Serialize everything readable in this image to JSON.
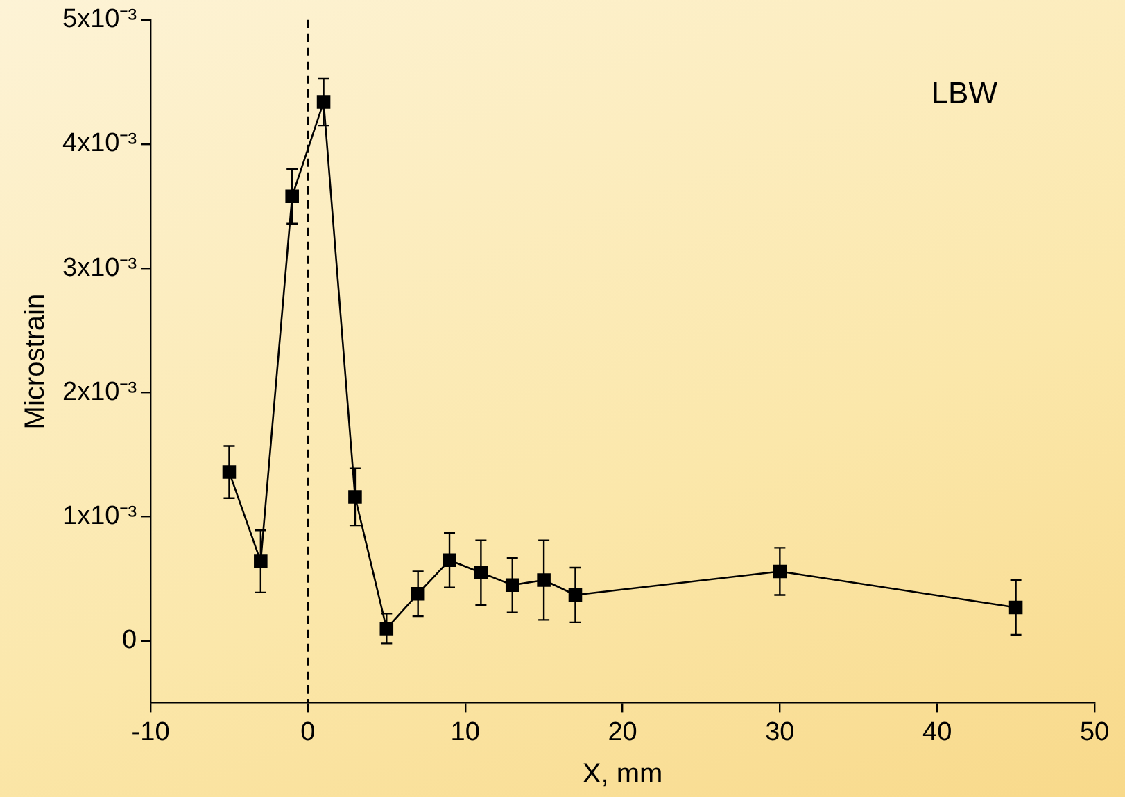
{
  "chart_data": {
    "type": "line",
    "xlabel": "X, mm",
    "ylabel": "Microstrain",
    "x": [
      -5,
      -3,
      -1,
      1,
      3,
      5,
      7,
      9,
      11,
      13,
      15,
      17,
      30,
      45
    ],
    "series": [
      {
        "color": "#000000",
        "values": [
          0.00136,
          0.00064,
          0.00358,
          0.00434,
          0.00116,
          0.0001,
          0.00038,
          0.00065,
          0.00055,
          0.00045,
          0.00049,
          0.00037,
          0.00056,
          0.00027
        ],
        "errors": [
          0.00021,
          0.00025,
          0.00022,
          0.00019,
          0.00023,
          0.00012,
          0.00018,
          0.00022,
          0.00026,
          0.00022,
          0.00032,
          0.00022,
          0.00019,
          0.00022
        ]
      }
    ],
    "xlim": [
      -10,
      50
    ],
    "xticks": [
      -10,
      0,
      10,
      20,
      30,
      40,
      50
    ],
    "ylim": [
      -0.0005,
      0.005
    ],
    "yticks": [
      {
        "value": 0,
        "label": "0"
      },
      {
        "value": 0.001,
        "label": "1x10⁻³"
      },
      {
        "value": 0.002,
        "label": "2x10⁻³"
      },
      {
        "value": 0.003,
        "label": "3x10⁻³"
      },
      {
        "value": 0.004,
        "label": "4x10⁻³"
      },
      {
        "value": 0.005,
        "label": "5x10⁻³"
      }
    ],
    "ref_lines": [
      {
        "axis": "x",
        "value": 0,
        "color": "#000000",
        "line_style": "dashed"
      }
    ],
    "annotations": [
      "LBW"
    ],
    "marker": "square",
    "line_style": "solid",
    "grid": false,
    "legend": false
  }
}
